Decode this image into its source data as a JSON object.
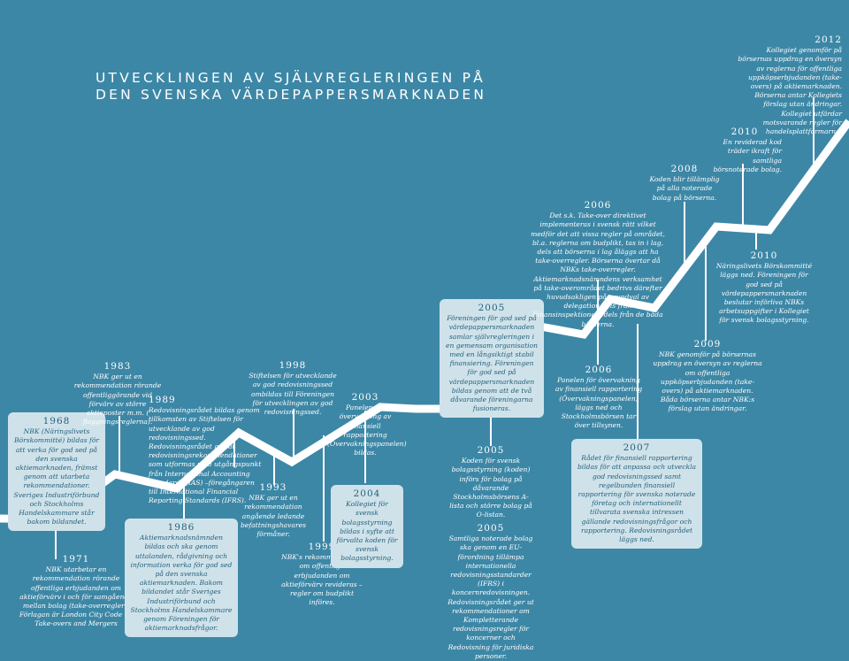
{
  "title": {
    "line1": "UTVECKLINGEN AV SJÄLVREGLERINGEN PÅ",
    "line2": "DEN SVENSKA VÄRDEPAPPERSMARKNADEN"
  },
  "colors": {
    "background": "#3d87a6",
    "line": "#ffffff",
    "box": "#cfe2ea",
    "box_text": "#24607c"
  },
  "events": {
    "e1968": {
      "year": "1968",
      "text": "NBK (Näringslivets Börskommitté) bildas för att verka för god sed på den svenska aktiemarknaden, främst genom att utarbeta rekommendationer. Sveriges Industriförbund och Stockholms Handelskammare står bakom bildandet."
    },
    "e1971": {
      "year": "1971",
      "text": "NBK utarbetar en rekommendation rörande offentliga erbjudanden om aktieförvärv i och för samgående mellan bolag (take-overregler). Förlagan är London City Code on Take-overs and Mergers"
    },
    "e1983": {
      "year": "1983",
      "text": "NBK ger ut en rekommendation rörande offentliggörande vid förvärv av större aktieposter m.m. ( flaggningsreglerna)."
    },
    "e1986": {
      "year": "1986",
      "text": "Aktiemarknadsnämnden bildas och ska genom uttalanden, rådgivning och information verka för god sed på den svenska aktiemarknaden. Bakom bildandet står Sveriges Industriförbund och Stockholms Handelskammare genom Föreningen för aktiemarknadsfrågor."
    },
    "e1989": {
      "year": "1989",
      "text": "Redovisningsrådet bildas genom tillkomsten av Stiftelsen för utvecklande av god redovisningssed. Redovisningsrådet ger ut redovisningsrekommendationer som utformas med utgångspunkt från International Accounting Standards (IAS) –föregångaren till International Financial Reporting Standards (IFRS)."
    },
    "e1993": {
      "year": "1993",
      "text": "NBK ger ut en rekommendation angående ledande befattningshavares förmåner."
    },
    "e1998": {
      "year": "1998",
      "text": "Stiftelsen för utvecklande av god redovisningssed ombildas till Föreningen för utvecklingen av god redovisningssed."
    },
    "e1999": {
      "year": "1999",
      "text": "NBK's rekommendation om offentliga erbjudanden om aktieförvärv revideras – regler om budplikt införes."
    },
    "e2003": {
      "year": "2003",
      "text": "Panelen för övervakning av finansiell rapportering (Övervakningspanelen) bildas."
    },
    "e2004": {
      "year": "2004",
      "text": "Kollegiet för svensk bolagsstyrning bildas i syfte att förvalta koden för svensk bolagsstyrning."
    },
    "e2005a": {
      "year": "2005",
      "text": "Föreningen för god sed på värdepappersmarknaden samlar självregleringen i en gemensam organisation med en långsiktigt stabil finansiering. Föreningen för god sed på värdepappersmarknaden bildas genom att de två dåvarande föreningarna fusioneras."
    },
    "e2005b": {
      "year": "2005",
      "text": "Koden för svensk bolagsstyrning (koden) införs för bolag på dåvarande Stockholmsbörsens A-lista och större bolag på O-listan."
    },
    "e2005c": {
      "year": "2005",
      "text": "Samtliga noterade bolag ska genom en EU-förordning tillämpa internationella redovisningsstandarder (IFRS) i koncernredovisningen. Redovisningsrådet ger ut rekommendationer om Kompletterande redovisningsregler för koncerner och Redovisning för juridiska personer."
    },
    "e2006a": {
      "year": "2006",
      "text": "Det s.k. Take-over direktivet implementeras i svensk rätt vilket medför det att vissa regler på området, bl.a. reglerna om budplikt, tas in i lag, dels att börserna i lag åläggs att ha take-overregler. Börserna övertar då NBKs take-overregler. Aktiemarknadsnämndens verksamhet på take-overområdet bedrivs därefter huvudsakligen på grundval av delegation dels från Finansinspektionen, dels från de båda börserna."
    },
    "e2006b": {
      "year": "2006",
      "text": "Panelen för övervakning av finansiell rapportering (Övervakningspanelen) läggs ned och Stockholmsbörsen tar över tillsynen."
    },
    "e2007": {
      "year": "2007",
      "text": "Rådet för finansiell rapportering bildas för att anpassa och utveckla god redovisningssed samt regelbunden finansiell rapportering för svenska noterade företag och internationellt tillvarata svenska intressen gällande redovisningsfrågor och rapportering. Redovisningsrådet läggs ned."
    },
    "e2008": {
      "year": "2008",
      "text": "Koden blir tillämplig på alla noterade bolag på börserna."
    },
    "e2009": {
      "year": "2009",
      "text": "NBK genomför på börsernas uppdrag en översyn av reglerna om offentliga uppköpserbjudanden (take-overs) på aktiemarknaden. Båda börserna antar NBK:s förslag utan ändringar."
    },
    "e2010a": {
      "year": "2010",
      "text": "En reviderad kod träder ikraft för samtliga börsnoterade bolag."
    },
    "e2010b": {
      "year": "2010",
      "text": "Näringslivets Börskommitté läggs ned. Föreningen för god sed på värdepappersmarknaden beslutar införliva NBKs arbetsuppgifter i Kollegiet för svensk bolagsstyrning."
    },
    "e2012": {
      "year": "2012",
      "text": "Kollegiet genomför på börsernas uppdrag en översyn av reglerna för offentliga uppköpserbjudanden (take-overs) på aktiemarknaden. Börserna antar Kollegiets förslag utan ändringar. Kollegiet utfärdar motsvarande regler för handelsplattformarna."
    }
  }
}
